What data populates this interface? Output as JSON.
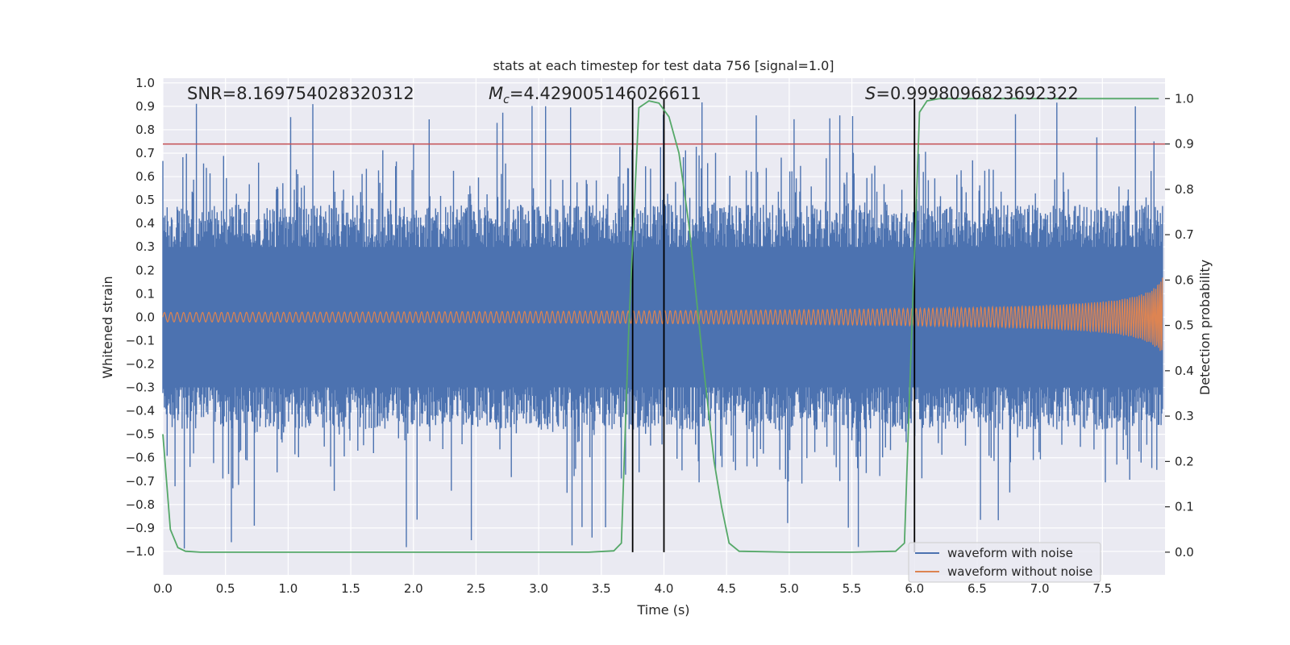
{
  "chart_data": {
    "type": "line",
    "title": "stats at each timestep for test data 756 [signal=1.0]",
    "xlabel": "Time (s)",
    "ylabel": "Whitened strain",
    "ylabel_right": "Detection probability",
    "xlim": [
      0,
      8
    ],
    "ylim": [
      -1.1,
      1.02
    ],
    "ylim_right": [
      -0.05,
      1.045
    ],
    "grid": true,
    "x_ticks": [
      "0.0",
      "0.5",
      "1.0",
      "1.5",
      "2.0",
      "2.5",
      "3.0",
      "3.5",
      "4.0",
      "4.5",
      "5.0",
      "5.5",
      "6.0",
      "6.5",
      "7.0",
      "7.5"
    ],
    "y_ticks": [
      "1.0",
      "0.9",
      "0.8",
      "0.7",
      "0.6",
      "0.5",
      "0.4",
      "0.3",
      "0.2",
      "0.1",
      "0.0",
      "−0.1",
      "−0.2",
      "−0.3",
      "−0.4",
      "−0.5",
      "−0.6",
      "−0.7",
      "−0.8",
      "−0.9",
      "−1.0"
    ],
    "y_right_ticks": [
      "1.0",
      "0.9",
      "0.8",
      "0.7",
      "0.6",
      "0.5",
      "0.4",
      "0.3",
      "0.2",
      "0.1",
      "0.0"
    ],
    "annotations": {
      "snr": "SNR=8.169754028320312",
      "mc_symbol": "M",
      "mc_sub": "c",
      "mc_value": "=4.429005146026611",
      "s_symbol": "S",
      "s_value": "=0.9998096823692322"
    },
    "threshold_prob": 0.9,
    "vertical_lines_x": [
      3.75,
      4.0,
      6.0
    ],
    "series": [
      {
        "name": "waveform with noise",
        "color": "#4c72b0",
        "kind": "strain-noise",
        "envelope_max": 0.92,
        "envelope_min": -1.0
      },
      {
        "name": "waveform without noise",
        "color": "#dd8452",
        "kind": "chirp",
        "amplitude_start": 0.02,
        "amplitude_end": 0.2
      },
      {
        "name": "",
        "color": "#55a868",
        "kind": "probability",
        "x": [
          0.0,
          0.06,
          0.12,
          0.18,
          0.3,
          1.0,
          2.0,
          3.0,
          3.4,
          3.6,
          3.66,
          3.72,
          3.8,
          3.88,
          3.96,
          4.04,
          4.12,
          4.2,
          4.3,
          4.4,
          4.46,
          4.52,
          4.6,
          5.0,
          5.5,
          5.85,
          5.92,
          5.98,
          6.04,
          6.1,
          6.2,
          7.0,
          7.95
        ],
        "y": [
          0.26,
          0.05,
          0.01,
          0.002,
          0.0,
          0.0,
          0.0,
          0.0,
          0.0,
          0.003,
          0.02,
          0.5,
          0.98,
          0.995,
          0.99,
          0.96,
          0.88,
          0.72,
          0.45,
          0.2,
          0.1,
          0.02,
          0.002,
          0.0,
          0.0,
          0.002,
          0.02,
          0.5,
          0.97,
          0.995,
          1.0,
          1.0,
          1.0
        ]
      }
    ]
  }
}
